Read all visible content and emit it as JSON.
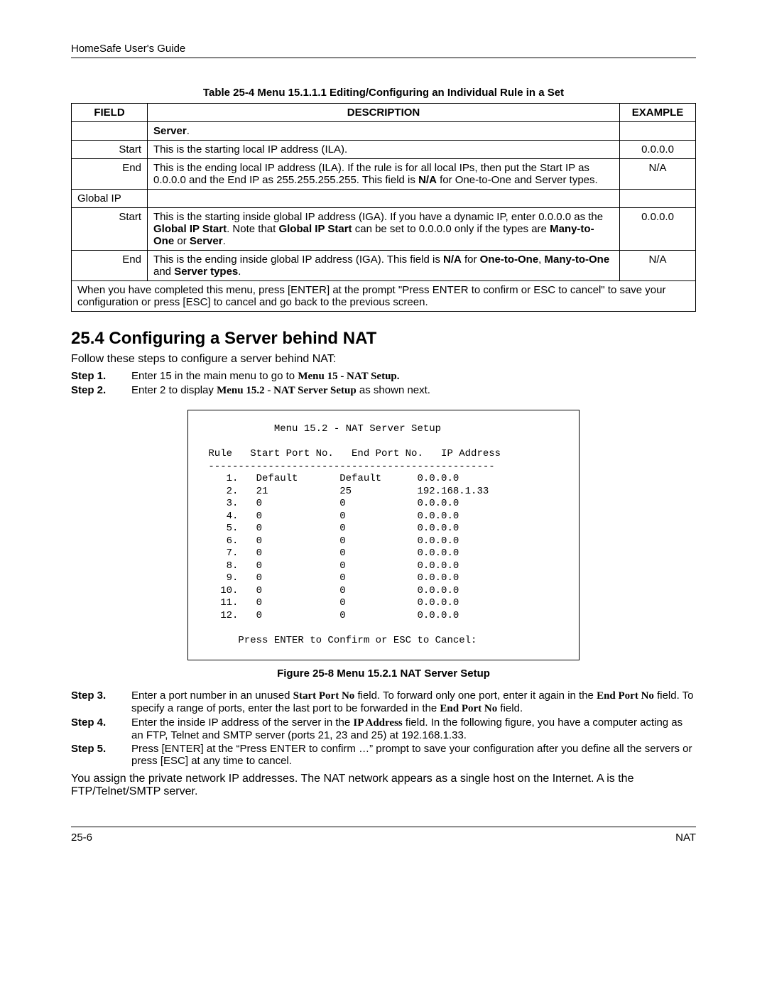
{
  "header": "HomeSafe User's Guide",
  "table_caption": "Table 25-4 Menu 15.1.1.1 Editing/Configuring an Individual Rule in a Set",
  "table": {
    "headers": [
      "FIELD",
      "DESCRIPTION",
      "EXAMPLE"
    ],
    "rows": [
      {
        "field": "",
        "fieldAlign": "left",
        "desc_html": "<span class='b'>Server</span>.",
        "example": ""
      },
      {
        "field": "Start",
        "fieldAlign": "right",
        "desc_html": "This is the starting local IP address (ILA).",
        "example": "0.0.0.0"
      },
      {
        "field": "End",
        "fieldAlign": "right",
        "desc_html": "This is the ending local IP address (ILA). If the rule is for all local IPs, then put the Start IP as 0.0.0.0 and the End IP as 255.255.255.255. This field is <span class='b'>N/A</span> for One-to-One and Server types.",
        "example": "N/A"
      },
      {
        "field": "Global IP",
        "fieldAlign": "left",
        "desc_html": "",
        "example": ""
      },
      {
        "field": "Start",
        "fieldAlign": "right",
        "desc_html": "This is the starting inside global IP address (IGA). If you have a dynamic IP, enter 0.0.0.0 as the <span class='b'>Global IP Start</span>. Note that <span class='b'>Global IP Start</span> can be set to 0.0.0.0 only if the types are <span class='b'>Many-to-One</span> or <span class='b'>Server</span>.",
        "example": "0.0.0.0"
      },
      {
        "field": "End",
        "fieldAlign": "right",
        "desc_html": "This is the ending inside global IP address (IGA). This field is <span class='b'>N/A</span> for <span class='b'>One-to-One</span>, <span class='b'>Many-to-One</span> and <span class='b'>Server types</span>.",
        "example": "N/A"
      }
    ],
    "footer": "When you have completed this menu, press [ENTER] at the prompt \"Press ENTER to confirm or ESC to cancel\" to save your configuration or press [ESC] to cancel and go back to the previous screen."
  },
  "section_heading": "25.4  Configuring a Server behind NAT",
  "intro": "Follow these steps to configure a server behind NAT:",
  "steps_a": [
    {
      "label": "Step 1.",
      "html": "Enter 15 in the main menu to go to <span class='serif-b'>Menu 15 - NAT Setup.</span>"
    },
    {
      "label": "Step 2.",
      "html": "Enter 2 to display <span class='serif-b'>Menu 15.2 - NAT Server Setup</span> as shown next."
    }
  ],
  "terminal": {
    "title": "Menu 15.2 - NAT Server Setup",
    "col_header": " Rule   Start Port No.   End Port No.   IP Address",
    "divider": " ------------------------------------------------",
    "rows": [
      {
        "n": "1.",
        "s": "Default",
        "e": "Default",
        "ip": "0.0.0.0"
      },
      {
        "n": "2.",
        "s": "21",
        "e": "25",
        "ip": "192.168.1.33"
      },
      {
        "n": "3.",
        "s": "0",
        "e": "0",
        "ip": "0.0.0.0"
      },
      {
        "n": "4.",
        "s": "0",
        "e": "0",
        "ip": "0.0.0.0"
      },
      {
        "n": "5.",
        "s": "0",
        "e": "0",
        "ip": "0.0.0.0"
      },
      {
        "n": "6.",
        "s": "0",
        "e": "0",
        "ip": "0.0.0.0"
      },
      {
        "n": "7.",
        "s": "0",
        "e": "0",
        "ip": "0.0.0.0"
      },
      {
        "n": "8.",
        "s": "0",
        "e": "0",
        "ip": "0.0.0.0"
      },
      {
        "n": "9.",
        "s": "0",
        "e": "0",
        "ip": "0.0.0.0"
      },
      {
        "n": "10.",
        "s": "0",
        "e": "0",
        "ip": "0.0.0.0"
      },
      {
        "n": "11.",
        "s": "0",
        "e": "0",
        "ip": "0.0.0.0"
      },
      {
        "n": "12.",
        "s": "0",
        "e": "0",
        "ip": "0.0.0.0"
      }
    ],
    "prompt": "Press ENTER to Confirm or ESC to Cancel:"
  },
  "fig_caption": "Figure 25-8 Menu 15.2.1 NAT Server Setup",
  "steps_b": [
    {
      "label": "Step 3.",
      "html": "Enter a port number in an unused <span class='serif-b'>Start Port No</span> field. To forward only one port, enter it again in the <span class='serif-b'>End Port No</span> field. To specify a range of ports, enter the last port to be forwarded in the <span class='serif-b'>End Port No</span> field."
    },
    {
      "label": "Step 4.",
      "html": "Enter the inside IP address of the server in the <span class='serif-b'>IP Address</span> field. In the following figure, you have a computer acting as an FTP, Telnet and SMTP server (ports 21, 23 and 25) at 192.168.1.33."
    },
    {
      "label": "Step 5.",
      "html": "Press [ENTER] at the &ldquo;Press ENTER to confirm &hellip;&rdquo; prompt to save your configuration after you define all the servers or press [ESC] at any time to cancel."
    }
  ],
  "closing": "You assign the private network IP addresses. The NAT network appears as a single host on the Internet. A is the FTP/Telnet/SMTP server.",
  "footer": {
    "left": "25-6",
    "right": "NAT"
  }
}
